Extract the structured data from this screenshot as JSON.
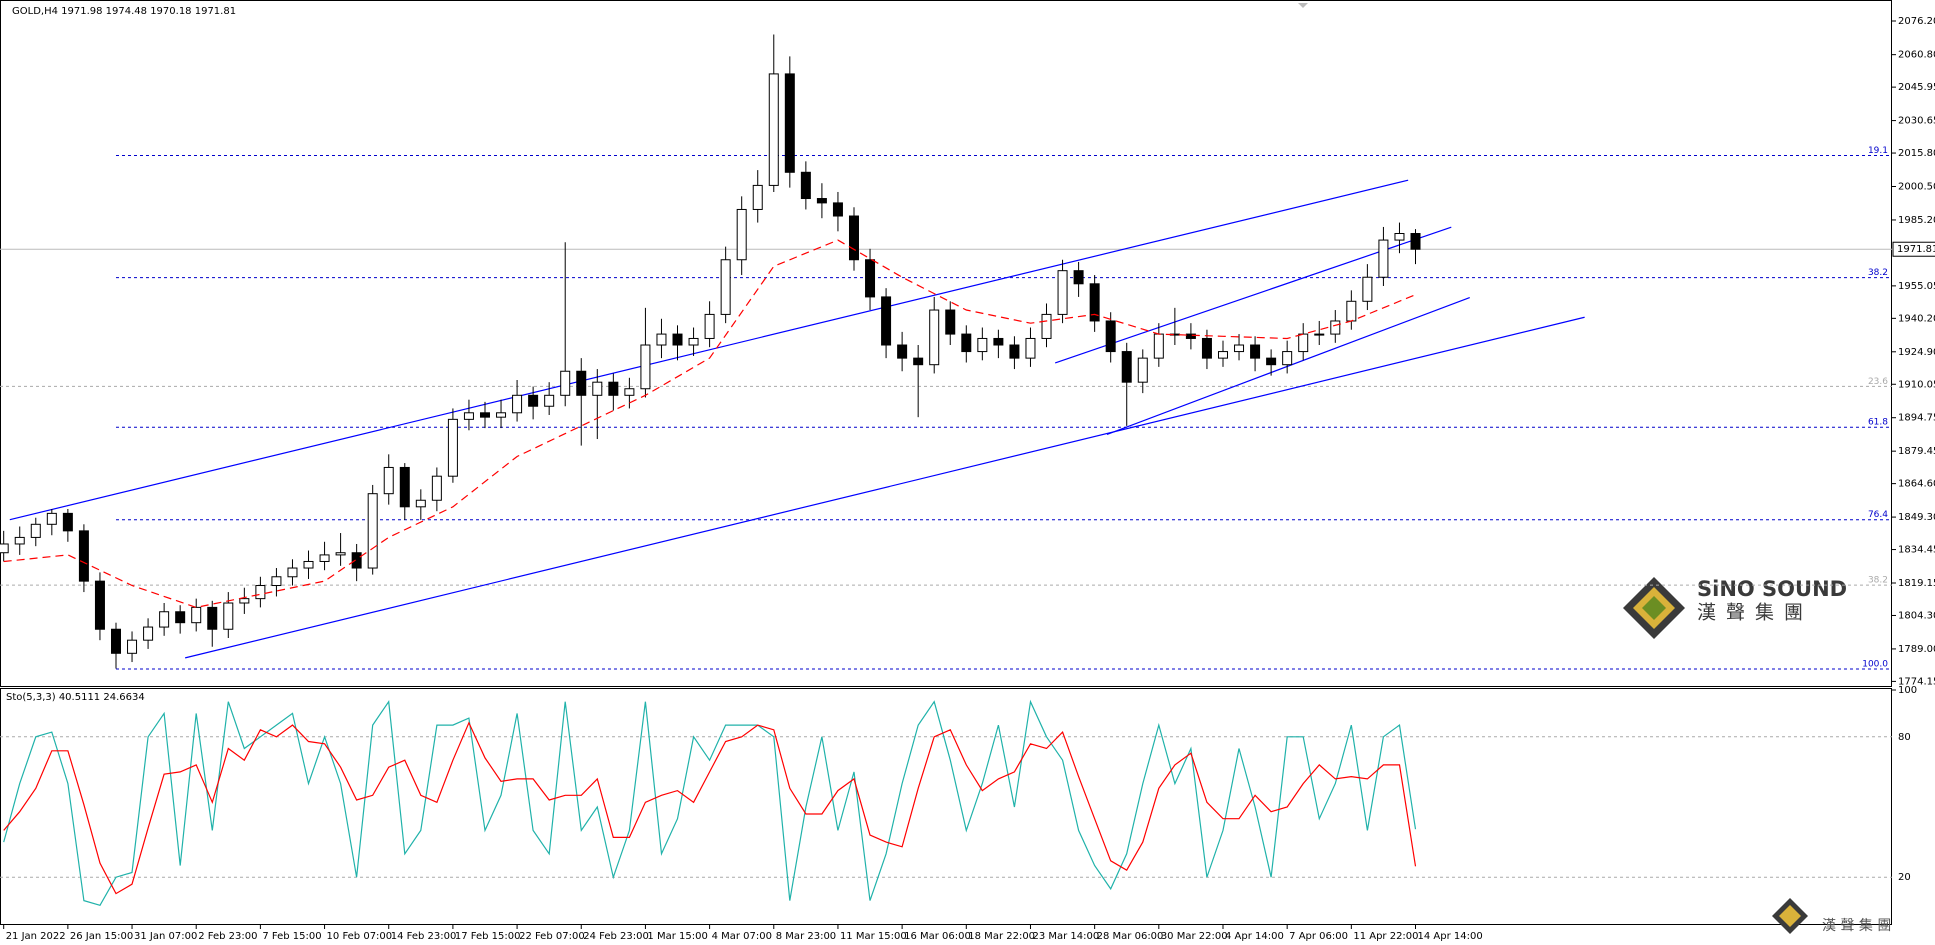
{
  "chart_data": [
    {
      "type": "candlestick",
      "title": "GOLD,H4 1971.98 1974.48 1970.18 1971.81",
      "xlim": [
        -0.23,
        117.7
      ],
      "ylim": [
        1772.5,
        2085.8
      ],
      "yticks": [
        {
          "value": 2076.2,
          "label": "2076.20"
        },
        {
          "value": 2060.8,
          "label": "2060.80"
        },
        {
          "value": 2045.95,
          "label": "2045.95"
        },
        {
          "value": 2030.65,
          "label": "2030.65"
        },
        {
          "value": 2015.8,
          "label": "2015.80"
        },
        {
          "value": 2000.5,
          "label": "2000.50"
        },
        {
          "value": 1985.2,
          "label": "1985.20"
        },
        {
          "value": 1955.05,
          "label": "1955.05"
        },
        {
          "value": 1940.2,
          "label": "1940.20"
        },
        {
          "value": 1924.9,
          "label": "1924.90"
        },
        {
          "value": 1910.05,
          "label": "1910.05"
        },
        {
          "value": 1894.75,
          "label": "1894.75"
        },
        {
          "value": 1879.45,
          "label": "1879.45"
        },
        {
          "value": 1864.6,
          "label": "1864.60"
        },
        {
          "value": 1849.3,
          "label": "1849.30"
        },
        {
          "value": 1834.45,
          "label": "1834.45"
        },
        {
          "value": 1819.15,
          "label": "1819.15"
        },
        {
          "value": 1804.3,
          "label": "1804.30"
        },
        {
          "value": 1789,
          "label": "1789.00"
        },
        {
          "value": 1774.15,
          "label": "1774.15"
        }
      ],
      "xticks": [
        {
          "value": 0,
          "label": "21 Jan 2022"
        },
        {
          "value": 4,
          "label": "26 Jan 15:00"
        },
        {
          "value": 8,
          "label": "31 Jan 07:00"
        },
        {
          "value": 12,
          "label": "2 Feb 23:00"
        },
        {
          "value": 16,
          "label": "7 Feb 15:00"
        },
        {
          "value": 20,
          "label": "10 Feb 07:00"
        },
        {
          "value": 24,
          "label": "14 Feb 23:00"
        },
        {
          "value": 28,
          "label": "17 Feb 15:00"
        },
        {
          "value": 32,
          "label": "22 Feb 07:00"
        },
        {
          "value": 36,
          "label": "24 Feb 23:00"
        },
        {
          "value": 40,
          "label": "1 Mar 15:00"
        },
        {
          "value": 44,
          "label": "4 Mar 07:00"
        },
        {
          "value": 48,
          "label": "8 Mar 23:00"
        },
        {
          "value": 52,
          "label": "11 Mar 15:00"
        },
        {
          "value": 56,
          "label": "16 Mar 06:00"
        },
        {
          "value": 60,
          "label": "18 Mar 22:00"
        },
        {
          "value": 64,
          "label": "23 Mar 14:00"
        },
        {
          "value": 68,
          "label": "28 Mar 06:00"
        },
        {
          "value": 72,
          "label": "30 Mar 22:00"
        },
        {
          "value": 76,
          "label": "4 Apr 14:00"
        },
        {
          "value": 80,
          "label": "7 Apr 06:00"
        },
        {
          "value": 84,
          "label": "11 Apr 22:00"
        },
        {
          "value": 88,
          "label": "14 Apr 14:00"
        }
      ],
      "ohlc": [
        [
          1833,
          1843,
          1829,
          1837
        ],
        [
          1837,
          1845,
          1832,
          1840
        ],
        [
          1840,
          1849,
          1836,
          1846
        ],
        [
          1846,
          1853,
          1841,
          1851
        ],
        [
          1851,
          1853,
          1838,
          1843
        ],
        [
          1843,
          1846,
          1815,
          1820
        ],
        [
          1820,
          1824,
          1793,
          1798
        ],
        [
          1798,
          1801,
          1780,
          1787
        ],
        [
          1787,
          1797,
          1783,
          1793
        ],
        [
          1793,
          1803,
          1789,
          1799
        ],
        [
          1799,
          1810,
          1795,
          1806
        ],
        [
          1806,
          1809,
          1796,
          1801
        ],
        [
          1801,
          1812,
          1797,
          1808
        ],
        [
          1808,
          1811,
          1790,
          1798
        ],
        [
          1798,
          1815,
          1794,
          1810
        ],
        [
          1810,
          1817,
          1805,
          1812
        ],
        [
          1812,
          1822,
          1808,
          1818
        ],
        [
          1818,
          1826,
          1813,
          1822
        ],
        [
          1822,
          1830,
          1818,
          1826
        ],
        [
          1826,
          1834,
          1821,
          1829
        ],
        [
          1829,
          1838,
          1825,
          1832
        ],
        [
          1832,
          1842,
          1827,
          1833
        ],
        [
          1833,
          1837,
          1820,
          1826
        ],
        [
          1826,
          1864,
          1823,
          1860
        ],
        [
          1860,
          1878,
          1855,
          1872
        ],
        [
          1872,
          1874,
          1848,
          1854
        ],
        [
          1854,
          1862,
          1848,
          1857
        ],
        [
          1857,
          1872,
          1852,
          1868
        ],
        [
          1868,
          1899,
          1865,
          1894
        ],
        [
          1894,
          1903,
          1889,
          1897
        ],
        [
          1897,
          1902,
          1890,
          1895
        ],
        [
          1895,
          1903,
          1890,
          1897
        ],
        [
          1897,
          1912,
          1893,
          1905
        ],
        [
          1905,
          1909,
          1894,
          1900
        ],
        [
          1900,
          1911,
          1896,
          1905
        ],
        [
          1905,
          1975,
          1900,
          1916
        ],
        [
          1916,
          1922,
          1882,
          1905
        ],
        [
          1905,
          1917,
          1885,
          1911
        ],
        [
          1911,
          1915,
          1898,
          1905
        ],
        [
          1905,
          1913,
          1899,
          1908
        ],
        [
          1908,
          1945,
          1904,
          1928
        ],
        [
          1928,
          1940,
          1922,
          1933
        ],
        [
          1933,
          1937,
          1921,
          1928
        ],
        [
          1928,
          1936,
          1923,
          1931
        ],
        [
          1931,
          1948,
          1927,
          1942
        ],
        [
          1942,
          1973,
          1938,
          1967
        ],
        [
          1967,
          1996,
          1960,
          1990
        ],
        [
          1990,
          2008,
          1984,
          2001
        ],
        [
          2001,
          2070,
          1998,
          2052
        ],
        [
          2052,
          2060,
          2000,
          2007
        ],
        [
          2007,
          2012,
          1990,
          1995
        ],
        [
          1995,
          2002,
          1986,
          1993
        ],
        [
          1993,
          1998,
          1980,
          1987
        ],
        [
          1987,
          1991,
          1962,
          1967
        ],
        [
          1967,
          1972,
          1944,
          1950
        ],
        [
          1950,
          1954,
          1922,
          1928
        ],
        [
          1928,
          1934,
          1916,
          1922
        ],
        [
          1922,
          1928,
          1895,
          1919
        ],
        [
          1919,
          1950,
          1915,
          1944
        ],
        [
          1944,
          1948,
          1928,
          1933
        ],
        [
          1933,
          1937,
          1920,
          1925
        ],
        [
          1925,
          1936,
          1921,
          1931
        ],
        [
          1931,
          1935,
          1922,
          1928
        ],
        [
          1928,
          1932,
          1917,
          1922
        ],
        [
          1922,
          1936,
          1918,
          1931
        ],
        [
          1931,
          1947,
          1927,
          1942
        ],
        [
          1942,
          1967,
          1938,
          1962
        ],
        [
          1962,
          1966,
          1950,
          1956
        ],
        [
          1956,
          1960,
          1934,
          1939
        ],
        [
          1939,
          1943,
          1920,
          1925
        ],
        [
          1925,
          1929,
          1891,
          1911
        ],
        [
          1911,
          1926,
          1906,
          1922
        ],
        [
          1922,
          1938,
          1918,
          1933
        ],
        [
          1933,
          1945,
          1928,
          1933
        ],
        [
          1933,
          1938,
          1926,
          1931
        ],
        [
          1931,
          1935,
          1917,
          1922
        ],
        [
          1922,
          1930,
          1918,
          1925
        ],
        [
          1925,
          1933,
          1921,
          1928
        ],
        [
          1928,
          1932,
          1916,
          1922
        ],
        [
          1922,
          1926,
          1914,
          1919
        ],
        [
          1919,
          1930,
          1915,
          1925
        ],
        [
          1925,
          1938,
          1921,
          1933
        ],
        [
          1933,
          1939,
          1928,
          1933
        ],
        [
          1933,
          1944,
          1929,
          1939
        ],
        [
          1939,
          1953,
          1935,
          1948
        ],
        [
          1948,
          1965,
          1944,
          1959
        ],
        [
          1959,
          1982,
          1955,
          1976
        ],
        [
          1976,
          1984,
          1970,
          1979
        ],
        [
          1979,
          1981,
          1965,
          1971.81
        ]
      ],
      "ma": {
        "color": "#ff0000",
        "x": [
          0,
          4,
          8,
          12,
          16,
          20,
          24,
          28,
          32,
          36,
          40,
          44,
          48,
          52,
          56,
          60,
          64,
          68,
          72,
          76,
          80,
          84,
          88
        ],
        "values": [
          1829,
          1832,
          1818,
          1808,
          1814,
          1820,
          1840,
          1854,
          1877,
          1891,
          1905,
          1922,
          1964,
          1976,
          1959,
          1944,
          1938,
          1942,
          1933,
          1932,
          1931,
          1939,
          1951
        ]
      },
      "trendlines": [
        {
          "x": [
            0.38,
            87.54
          ],
          "y": [
            1848.1,
            2003.4
          ]
        },
        {
          "x": [
            11.31,
            98.54
          ],
          "y": [
            1784.9,
            1940.7
          ]
        },
        {
          "x": [
            65.54,
            90.23
          ],
          "y": [
            1919.8,
            1981.9
          ]
        },
        {
          "x": [
            68.77,
            91.38
          ],
          "y": [
            1887.1,
            1949.7
          ]
        }
      ],
      "trendline_color": "#0000ff",
      "fib_levels": [
        {
          "value": 2014.7,
          "label": "19.1",
          "color": "#0000cc",
          "start": 7
        },
        {
          "value": 1958.8,
          "label": "38.2",
          "color": "#0000cc",
          "start": 7
        },
        {
          "value": 1909.1,
          "label": "23.6",
          "color": "#aaaaaa",
          "start": -0.23
        },
        {
          "value": 1890.4,
          "label": "61.8",
          "color": "#0000cc",
          "start": 7
        },
        {
          "value": 1848.1,
          "label": "76.4",
          "color": "#0000cc",
          "start": 7
        },
        {
          "value": 1818.2,
          "label": "38.2",
          "color": "#aaaaaa",
          "start": -0.23
        },
        {
          "value": 1779.8,
          "label": "100.0",
          "color": "#0000cc",
          "start": 7
        }
      ],
      "current_price": 1971.81,
      "watermark": {
        "name": "SiNO SOUND",
        "chinese": "漢聲集團",
        "footer": "漢 聲 集 團"
      }
    },
    {
      "type": "line",
      "title": "Sto(5,3,3) 40.5111 24.6634",
      "ylim": [
        0,
        100
      ],
      "yticks": [
        20,
        80,
        100
      ],
      "grid": true,
      "series": [
        {
          "color": "#20b2aa",
          "values": [
            35,
            60,
            80,
            82,
            60,
            10,
            8,
            20,
            22,
            80,
            90,
            25,
            90,
            40,
            95,
            75,
            80,
            85,
            90,
            60,
            80,
            60,
            20,
            85,
            95,
            30,
            40,
            85,
            85,
            88,
            40,
            55,
            90,
            40,
            30,
            95,
            40,
            50,
            20,
            40,
            95,
            30,
            45,
            80,
            70,
            85,
            85,
            85,
            80,
            10,
            50,
            80,
            40,
            65,
            10,
            30,
            60,
            85,
            95,
            70,
            40,
            60,
            85,
            50,
            95,
            80,
            70,
            40,
            25,
            15,
            30,
            60,
            85,
            60,
            75,
            20,
            40,
            75,
            50,
            20,
            80,
            80,
            45,
            60,
            85,
            40,
            80,
            85,
            40.5111
          ]
        },
        {
          "color": "#ff0000",
          "values": [
            40,
            48,
            58,
            74,
            74,
            51,
            26,
            13,
            17,
            41,
            64,
            65,
            68,
            52,
            75,
            70,
            83,
            80,
            85,
            78,
            77,
            67,
            53,
            55,
            67,
            70,
            55,
            52,
            70,
            86,
            71,
            61,
            62,
            62,
            53,
            55,
            55,
            62,
            37,
            37,
            52,
            55,
            57,
            52,
            65,
            78,
            80,
            85,
            83,
            58,
            47,
            47,
            57,
            62,
            38,
            35,
            33,
            58,
            80,
            83,
            68,
            57,
            62,
            65,
            77,
            75,
            82,
            63,
            45,
            27,
            23,
            35,
            58,
            68,
            73,
            52,
            45,
            45,
            55,
            48,
            50,
            60,
            68,
            62,
            63,
            62,
            68,
            68,
            24.6634
          ]
        }
      ]
    }
  ]
}
